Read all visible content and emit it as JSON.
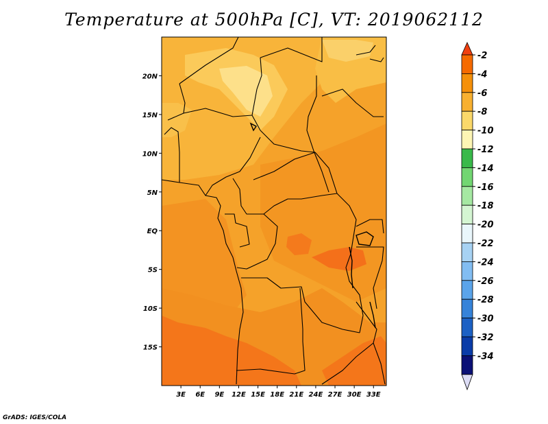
{
  "title": "Temperature at 500hPa [C], VT: 2019062112",
  "credit": "GrADS: IGES/COLA",
  "map": {
    "lat_labels": [
      "20N",
      "15N",
      "10N",
      "5N",
      "EQ",
      "5S",
      "10S",
      "15S"
    ],
    "lat_values": [
      20,
      15,
      10,
      5,
      0,
      -5,
      -10,
      -15
    ],
    "lon_labels": [
      "3E",
      "6E",
      "9E",
      "12E",
      "15E",
      "18E",
      "21E",
      "24E",
      "27E",
      "30E",
      "33E"
    ],
    "lon_values": [
      3,
      6,
      9,
      12,
      15,
      18,
      21,
      24,
      27,
      30,
      33
    ],
    "lon_range": [
      0,
      35
    ],
    "lat_range": [
      -20,
      25
    ]
  },
  "colorbar": {
    "labels": [
      "-2",
      "-4",
      "-6",
      "-8",
      "-10",
      "-12",
      "-14",
      "-16",
      "-18",
      "-20",
      "-22",
      "-24",
      "-26",
      "-28",
      "-30",
      "-32",
      "-34"
    ],
    "colors": [
      "#f04010",
      "#f56a00",
      "#f5900a",
      "#f8b030",
      "#fbd86a",
      "#fdf5b4",
      "#39b94a",
      "#72d672",
      "#a5e8a2",
      "#d4f5d2",
      "#e9f6fb",
      "#a7d2f3",
      "#82bdf2",
      "#5ba4ea",
      "#3683d9",
      "#1c61c4",
      "#0a3ca8",
      "#0b1176",
      "#dcdcf5"
    ]
  }
}
